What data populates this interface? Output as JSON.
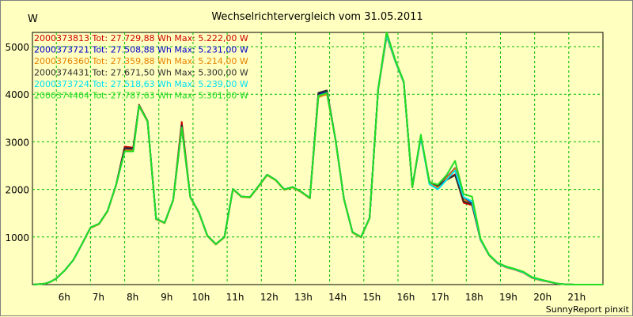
{
  "chart_data": {
    "type": "line",
    "title": "Wechselrichtervergleich vom 31.05.2011",
    "ylabel": "W",
    "xlabel": "",
    "ylim": [
      0,
      5300
    ],
    "xlim": [
      5.3,
      22.0
    ],
    "yticks": [
      1000,
      2000,
      3000,
      4000,
      5000
    ],
    "xticks": [
      {
        "v": 6,
        "label": "6h"
      },
      {
        "v": 7,
        "label": "7h"
      },
      {
        "v": 8,
        "label": "8h"
      },
      {
        "v": 9,
        "label": "9h"
      },
      {
        "v": 10,
        "label": "10h"
      },
      {
        "v": 11,
        "label": "11h"
      },
      {
        "v": 12,
        "label": "12h"
      },
      {
        "v": 13,
        "label": "13h"
      },
      {
        "v": 14,
        "label": "14h"
      },
      {
        "v": 15,
        "label": "15h"
      },
      {
        "v": 16,
        "label": "16h"
      },
      {
        "v": 17,
        "label": "17h"
      },
      {
        "v": 18,
        "label": "18h"
      },
      {
        "v": 19,
        "label": "19h"
      },
      {
        "v": 20,
        "label": "20h"
      },
      {
        "v": 21,
        "label": "21h"
      }
    ],
    "grid": true,
    "footer": "SunnyReport pinxit",
    "x": [
      5.33,
      5.67,
      5.83,
      6.0,
      6.25,
      6.5,
      6.75,
      7.0,
      7.25,
      7.5,
      7.75,
      8.0,
      8.25,
      8.42,
      8.67,
      8.92,
      9.17,
      9.42,
      9.67,
      9.92,
      10.17,
      10.42,
      10.67,
      10.92,
      11.17,
      11.42,
      11.67,
      11.92,
      12.17,
      12.42,
      12.67,
      12.92,
      13.17,
      13.42,
      13.67,
      13.92,
      14.17,
      14.42,
      14.67,
      14.92,
      15.17,
      15.42,
      15.67,
      15.92,
      16.17,
      16.42,
      16.67,
      16.92,
      17.17,
      17.42,
      17.67,
      17.92,
      18.17,
      18.42,
      18.67,
      18.92,
      19.17,
      19.42,
      19.67,
      19.92,
      20.17,
      20.42,
      20.67,
      20.92,
      21.17,
      21.42,
      22.0
    ],
    "series": [
      {
        "name": "2000373813",
        "label": "2000373813 Tot: 27.729,88 Wh Max: 5.222,00 W",
        "color": "#cc0000",
        "values": [
          0,
          20,
          60,
          130,
          300,
          520,
          850,
          1200,
          1280,
          1550,
          2100,
          2900,
          2880,
          3780,
          3440,
          1380,
          1300,
          1780,
          3420,
          1840,
          1520,
          1030,
          850,
          1000,
          2010,
          1850,
          1840,
          2070,
          2310,
          2200,
          2000,
          2050,
          1950,
          1820,
          4020,
          4070,
          3050,
          1800,
          1100,
          1000,
          1400,
          4100,
          5222,
          4700,
          4250,
          2050,
          3100,
          2160,
          2030,
          2200,
          2320,
          1720,
          1670,
          940,
          620,
          450,
          370,
          320,
          260,
          150,
          100,
          60,
          20,
          5,
          0,
          0,
          0
        ]
      },
      {
        "name": "2000373721",
        "label": "2000373721 Tot: 27.508,88 Wh Max: 5.231,00 W",
        "color": "#0000cc",
        "values": [
          0,
          20,
          60,
          130,
          300,
          520,
          850,
          1200,
          1280,
          1550,
          2100,
          2850,
          2830,
          3760,
          3430,
          1380,
          1300,
          1780,
          3300,
          1840,
          1520,
          1030,
          850,
          1000,
          2010,
          1850,
          1840,
          2070,
          2310,
          2200,
          2000,
          2050,
          1950,
          1820,
          4000,
          4060,
          3050,
          1800,
          1100,
          1000,
          1400,
          4100,
          5231,
          4700,
          4250,
          2050,
          3100,
          2140,
          2050,
          2250,
          2450,
          1820,
          1700,
          940,
          620,
          450,
          370,
          320,
          260,
          150,
          100,
          60,
          20,
          5,
          0,
          0,
          0
        ]
      },
      {
        "name": "2000376360",
        "label": "2000376360 Tot: 27.359,88 Wh Max: 5.214,00 W",
        "color": "#e88000",
        "values": [
          0,
          20,
          60,
          130,
          300,
          520,
          850,
          1190,
          1270,
          1540,
          2090,
          2830,
          2820,
          3750,
          3420,
          1370,
          1290,
          1770,
          3280,
          1830,
          1510,
          1020,
          840,
          990,
          2000,
          1840,
          1830,
          2060,
          2300,
          2190,
          1990,
          2040,
          1940,
          1810,
          3940,
          4000,
          3040,
          1790,
          1090,
          990,
          1390,
          4090,
          5214,
          4690,
          4240,
          2040,
          3090,
          2120,
          2040,
          2240,
          2440,
          1800,
          1680,
          930,
          610,
          440,
          360,
          310,
          250,
          140,
          90,
          55,
          18,
          5,
          0,
          0,
          0
        ]
      },
      {
        "name": "2000374431",
        "label": "2000374431 Tot: 27.671,50 Wh Max: 5.300,00 W",
        "color": "#303030",
        "values": [
          0,
          20,
          60,
          130,
          300,
          520,
          850,
          1200,
          1280,
          1550,
          2100,
          2870,
          2860,
          3770,
          3440,
          1380,
          1300,
          1780,
          3350,
          1840,
          1520,
          1030,
          850,
          1000,
          2010,
          1850,
          1840,
          2070,
          2310,
          2200,
          2000,
          2050,
          1950,
          1820,
          4030,
          4080,
          3050,
          1800,
          1100,
          1000,
          1400,
          4100,
          5300,
          4720,
          4260,
          2050,
          3100,
          2160,
          2080,
          2200,
          2300,
          1750,
          1690,
          940,
          620,
          450,
          370,
          320,
          260,
          150,
          100,
          60,
          20,
          5,
          0,
          0,
          0
        ]
      },
      {
        "name": "2000373724",
        "label": "2000373724 Tot: 27.518,63 Wh Max: 5.239,00 W",
        "color": "#00e0f0",
        "values": [
          0,
          20,
          60,
          130,
          300,
          520,
          850,
          1200,
          1280,
          1550,
          2100,
          2800,
          2800,
          3760,
          3430,
          1380,
          1300,
          1780,
          3300,
          1840,
          1520,
          1030,
          850,
          1000,
          2010,
          1850,
          1840,
          2070,
          2310,
          2200,
          2000,
          2050,
          1950,
          1820,
          3970,
          4030,
          3050,
          1800,
          1100,
          1000,
          1400,
          4100,
          5239,
          4700,
          4250,
          2050,
          3100,
          2110,
          2000,
          2200,
          2400,
          1840,
          1750,
          940,
          620,
          450,
          370,
          320,
          260,
          150,
          100,
          60,
          20,
          5,
          0,
          0,
          0
        ]
      },
      {
        "name": "2000374404",
        "label": "2000374404 Tot: 27.787,63 Wh Max: 5.301,00 W",
        "color": "#22dd22",
        "values": [
          0,
          20,
          60,
          130,
          300,
          520,
          850,
          1200,
          1280,
          1550,
          2100,
          2800,
          2800,
          3760,
          3430,
          1380,
          1300,
          1780,
          3300,
          1840,
          1520,
          1030,
          850,
          1000,
          2010,
          1850,
          1840,
          2070,
          2310,
          2200,
          2000,
          2050,
          1950,
          1820,
          3970,
          4030,
          3050,
          1800,
          1100,
          1000,
          1400,
          4100,
          5301,
          4720,
          4270,
          2050,
          3150,
          2150,
          2100,
          2300,
          2600,
          1900,
          1850,
          960,
          630,
          460,
          380,
          330,
          270,
          160,
          110,
          65,
          22,
          5,
          0,
          0,
          0
        ]
      }
    ]
  }
}
